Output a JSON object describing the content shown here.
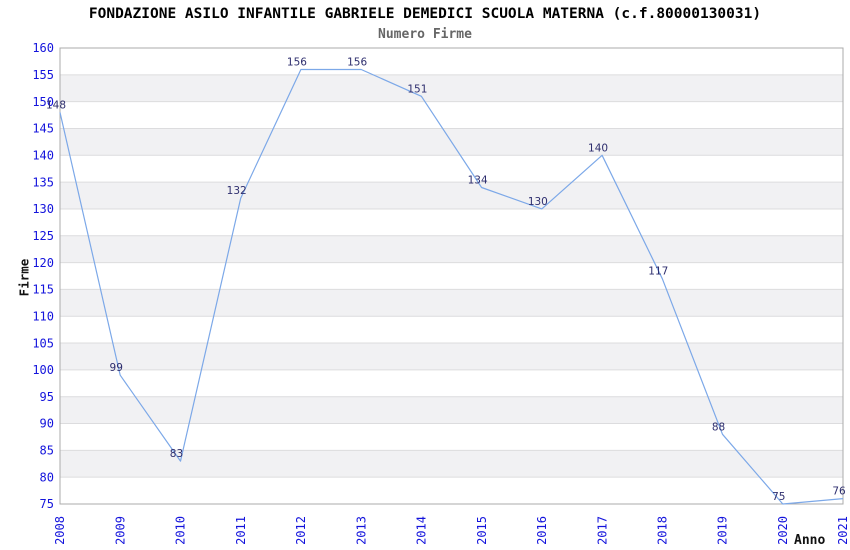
{
  "chart_data": {
    "type": "line",
    "title": "FONDAZIONE ASILO INFANTILE GABRIELE DEMEDICI SCUOLA MATERNA (c.f.80000130031)",
    "subtitle": "Numero Firme",
    "xlabel": "Anno",
    "ylabel": "Firme",
    "categories": [
      "2008",
      "2009",
      "2010",
      "2011",
      "2012",
      "2013",
      "2014",
      "2015",
      "2016",
      "2017",
      "2018",
      "2019",
      "2020",
      "2021"
    ],
    "series": [
      {
        "name": "Numero Firme",
        "values": [
          148,
          99,
          83,
          132,
          156,
          156,
          151,
          134,
          130,
          140,
          117,
          88,
          75,
          76
        ]
      }
    ],
    "ylim": [
      75,
      160
    ],
    "ytick_step": 5,
    "show_data_labels": true,
    "markers": "none",
    "legend_position": "none",
    "grid": "horizontal-gridlines-with-alternating-bands",
    "x_tick_rotation": -90,
    "colors": {
      "line": "#7CA8E8",
      "tick_label": "#1414DC",
      "data_label": "#2E2E6E",
      "band_fill": "#F1F1F3",
      "grid_line": "#DCDCDE",
      "plot_border": "#ABABAB",
      "title": "#000000",
      "subtitle": "#666666",
      "axis_title": "#111111",
      "background": "#FFFFFF"
    }
  }
}
